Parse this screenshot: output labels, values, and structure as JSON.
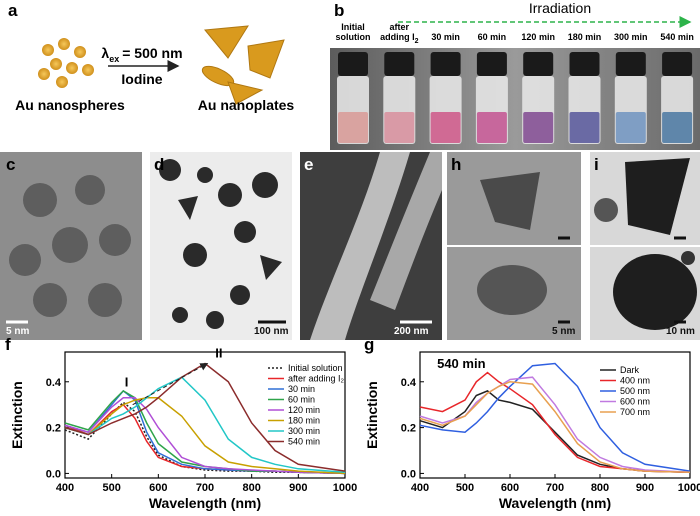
{
  "panel_a": {
    "letter": "a",
    "sphere_label": "Au nanospheres",
    "plate_label": "Au nanoplates",
    "excitation": {
      "symbol": "λ",
      "subscript": "ex",
      "rest": "= 500 nm"
    },
    "reagent": "Iodine"
  },
  "panel_b": {
    "letter": "b",
    "irradiation": "Irradiation",
    "vials": [
      {
        "lines": [
          "Initial",
          "solution"
        ],
        "color": "#d9a3a0"
      },
      {
        "lines": [
          "after",
          "adding I"
        ],
        "subscript": "2",
        "color": "#d99aa6"
      },
      {
        "lines": [
          "30 min"
        ],
        "color": "#d06a94"
      },
      {
        "lines": [
          "60 min"
        ],
        "color": "#c7679c"
      },
      {
        "lines": [
          "120 min"
        ],
        "color": "#8e5f9c"
      },
      {
        "lines": [
          "180 min"
        ],
        "color": "#6a6aa4"
      },
      {
        "lines": [
          "300 min"
        ],
        "color": "#7f9ec4"
      },
      {
        "lines": [
          "540 min"
        ],
        "color": "#5f86aa"
      }
    ]
  },
  "panel_c": {
    "letter": "c",
    "scale": "5 nm"
  },
  "panel_d": {
    "letter": "d",
    "scale": "100 nm"
  },
  "panel_e": {
    "letter": "e",
    "scale": "200 nm"
  },
  "panel_h": {
    "letter": "h",
    "scale": "5 nm"
  },
  "panel_i": {
    "letter": "i",
    "scale": "10 nm"
  },
  "chart_data": [
    {
      "type": "line",
      "panel_letter": "f",
      "x_label": "Wavelength (nm)",
      "y_label": "Extinction",
      "annotations": [
        "I",
        "II"
      ],
      "x": [
        400,
        450,
        500,
        525,
        550,
        575,
        600,
        650,
        700,
        750,
        800,
        850,
        900,
        1000
      ],
      "xlim": [
        400,
        1000
      ],
      "xticks": [
        400,
        500,
        600,
        700,
        800,
        900,
        1000
      ],
      "ylim": [
        -0.02,
        0.53
      ],
      "yticks": [
        {
          "value": 0,
          "label": "0.0"
        },
        0.2,
        0.4
      ],
      "series": [
        {
          "name": "Initial solution",
          "color": "#222222",
          "style": "dotted",
          "values": [
            0.19,
            0.15,
            0.26,
            0.31,
            0.27,
            0.16,
            0.08,
            0.03,
            0.015,
            0.01,
            0.01,
            0.005,
            0.005,
            0
          ]
        },
        {
          "name": "after adding I₂",
          "color": "#e8262a",
          "values": [
            0.21,
            0.17,
            0.27,
            0.3,
            0.24,
            0.14,
            0.07,
            0.03,
            0.02,
            0.015,
            0.01,
            0.01,
            0.005,
            0
          ]
        },
        {
          "name": "30 min",
          "color": "#2f6fd6",
          "values": [
            0.21,
            0.18,
            0.3,
            0.36,
            0.32,
            0.18,
            0.09,
            0.04,
            0.02,
            0.015,
            0.01,
            0.01,
            0.005,
            0
          ]
        },
        {
          "name": "60 min",
          "color": "#2fa44a",
          "values": [
            0.22,
            0.19,
            0.31,
            0.36,
            0.33,
            0.22,
            0.13,
            0.05,
            0.03,
            0.02,
            0.01,
            0.01,
            0.005,
            0
          ]
        },
        {
          "name": "120 min",
          "color": "#b04fd6",
          "values": [
            0.21,
            0.18,
            0.29,
            0.33,
            0.33,
            0.28,
            0.2,
            0.07,
            0.03,
            0.02,
            0.015,
            0.01,
            0.005,
            0
          ]
        },
        {
          "name": "180 min",
          "color": "#c8a000",
          "values": [
            0.2,
            0.17,
            0.26,
            0.3,
            0.32,
            0.33,
            0.33,
            0.25,
            0.12,
            0.05,
            0.03,
            0.02,
            0.01,
            0
          ]
        },
        {
          "name": "300 min",
          "color": "#22c7c7",
          "values": [
            0.2,
            0.17,
            0.24,
            0.26,
            0.29,
            0.33,
            0.37,
            0.42,
            0.32,
            0.15,
            0.07,
            0.04,
            0.02,
            0.005
          ]
        },
        {
          "name": "540 min",
          "color": "#8b2c2c",
          "values": [
            0.2,
            0.17,
            0.22,
            0.24,
            0.26,
            0.29,
            0.33,
            0.42,
            0.48,
            0.4,
            0.22,
            0.1,
            0.04,
            0.01
          ]
        }
      ]
    },
    {
      "type": "line",
      "panel_letter": "g",
      "x_label": "Wavelength (nm)",
      "y_label": "Extinction",
      "annotations": [
        "540 min"
      ],
      "x": [
        400,
        450,
        500,
        525,
        550,
        575,
        600,
        650,
        700,
        750,
        800,
        850,
        900,
        1000
      ],
      "xlim": [
        400,
        1000
      ],
      "xticks": [
        400,
        500,
        600,
        700,
        800,
        900,
        1000
      ],
      "ylim": [
        -0.02,
        0.53
      ],
      "yticks": [
        {
          "value": 0,
          "label": "0.0"
        },
        0.2,
        0.4
      ],
      "series": [
        {
          "name": "Dark",
          "color": "#222222",
          "values": [
            0.23,
            0.2,
            0.27,
            0.34,
            0.36,
            0.32,
            0.31,
            0.28,
            0.18,
            0.08,
            0.04,
            0.02,
            0.01,
            0.005
          ]
        },
        {
          "name": "400 nm",
          "color": "#e8262a",
          "values": [
            0.29,
            0.27,
            0.32,
            0.4,
            0.44,
            0.4,
            0.37,
            0.3,
            0.17,
            0.07,
            0.03,
            0.02,
            0.01,
            0.005
          ]
        },
        {
          "name": "500 nm",
          "color": "#2f5fe0",
          "values": [
            0.21,
            0.19,
            0.18,
            0.22,
            0.27,
            0.33,
            0.38,
            0.47,
            0.48,
            0.38,
            0.2,
            0.09,
            0.04,
            0.01
          ]
        },
        {
          "name": "600 nm",
          "color": "#c07ae0",
          "values": [
            0.25,
            0.22,
            0.25,
            0.31,
            0.35,
            0.38,
            0.41,
            0.42,
            0.3,
            0.15,
            0.07,
            0.03,
            0.015,
            0.005
          ]
        },
        {
          "name": "700 nm",
          "color": "#e8a050",
          "values": [
            0.24,
            0.21,
            0.25,
            0.3,
            0.35,
            0.38,
            0.4,
            0.39,
            0.27,
            0.13,
            0.05,
            0.02,
            0.01,
            0.005
          ]
        }
      ]
    }
  ]
}
